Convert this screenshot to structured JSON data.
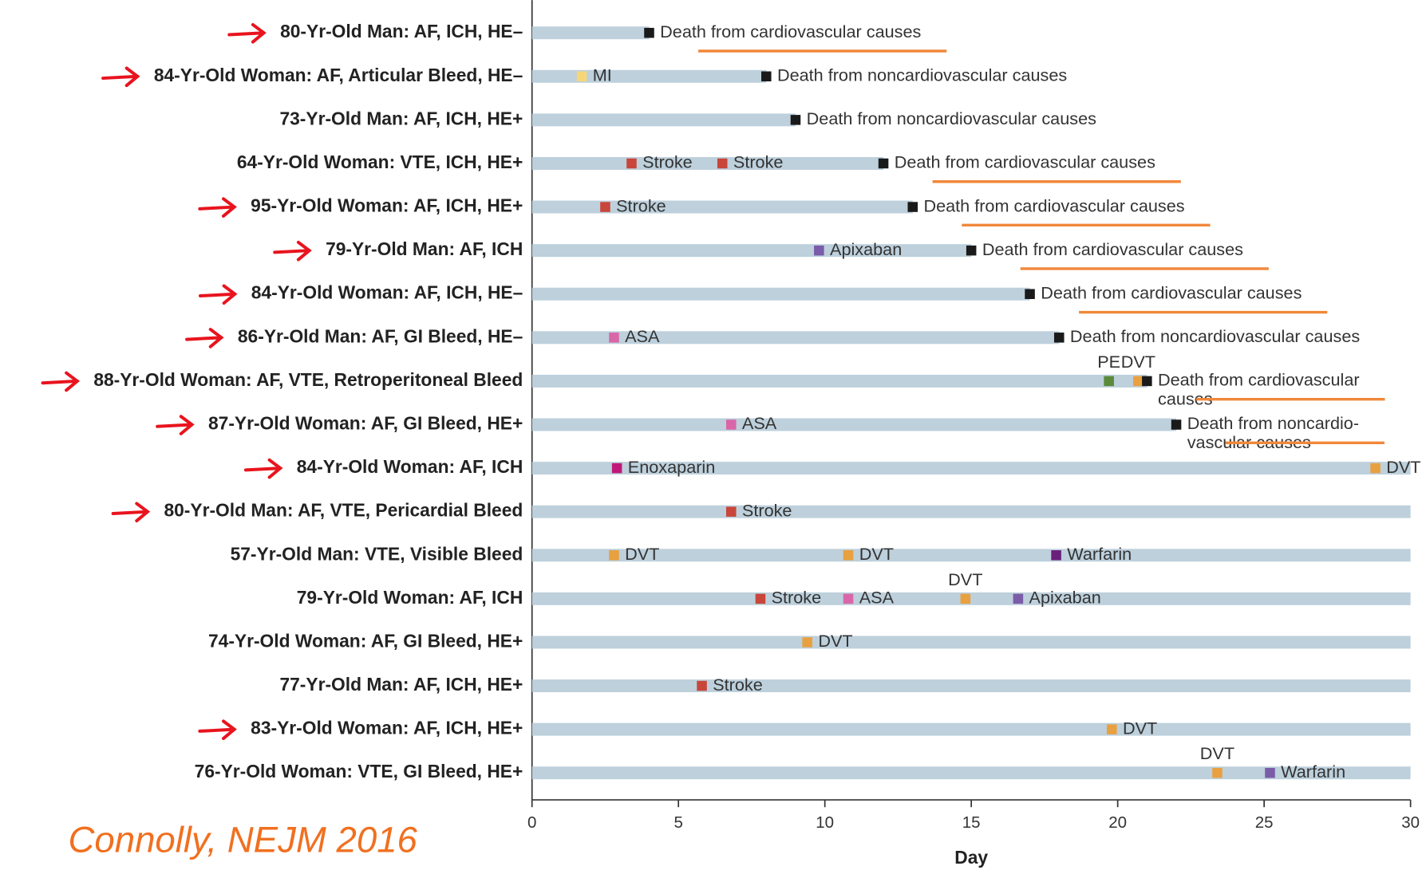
{
  "chart_data": {
    "type": "timeline",
    "x_label": "Day",
    "citation": "Connolly, NEJM 2016",
    "xlim": [
      0,
      30
    ],
    "xticks": [
      0,
      5,
      10,
      15,
      20,
      25,
      30
    ],
    "bar_color": "#bdd0dc",
    "arrow_color": "#e8141e",
    "underline_color": "#f0883a",
    "rows": [
      {
        "label": "80-Yr-Old Man: AF, ICH, HE–",
        "arrow": true,
        "end": 4,
        "events": [
          {
            "day": 4,
            "label": [
              "Death from cardiovascular causes"
            ],
            "color": "#1a1a1a",
            "underline": true
          }
        ]
      },
      {
        "label": "84-Yr-Old Woman: AF, Articular Bleed, HE–",
        "arrow": true,
        "end": 8,
        "events": [
          {
            "day": 1.7,
            "label": [
              "MI"
            ],
            "color": "#f5d77a"
          },
          {
            "day": 8,
            "label": [
              "Death from noncardiovascular causes"
            ],
            "color": "#1a1a1a"
          }
        ]
      },
      {
        "label": "73-Yr-Old Man: AF, ICH, HE+",
        "arrow": false,
        "end": 9,
        "events": [
          {
            "day": 9,
            "label": [
              "Death from noncardiovascular causes"
            ],
            "color": "#1a1a1a"
          }
        ]
      },
      {
        "label": "64-Yr-Old Woman: VTE, ICH, HE+",
        "arrow": false,
        "end": 12,
        "events": [
          {
            "day": 3.4,
            "label": [
              "Stroke"
            ],
            "color": "#c8463a"
          },
          {
            "day": 6.5,
            "label": [
              "Stroke"
            ],
            "color": "#c8463a"
          },
          {
            "day": 12,
            "label": [
              "Death from cardiovascular causes"
            ],
            "color": "#1a1a1a",
            "underline": true
          }
        ]
      },
      {
        "label": "95-Yr-Old Woman: AF, ICH, HE+",
        "arrow": true,
        "end": 13,
        "events": [
          {
            "day": 2.5,
            "label": [
              "Stroke"
            ],
            "color": "#c8463a"
          },
          {
            "day": 13,
            "label": [
              "Death from cardiovascular causes"
            ],
            "color": "#1a1a1a",
            "underline": true
          }
        ]
      },
      {
        "label": "79-Yr-Old Man: AF, ICH",
        "arrow": true,
        "end": 15,
        "events": [
          {
            "day": 9.8,
            "label": [
              "Apixaban"
            ],
            "color": "#7a5ca8"
          },
          {
            "day": 15,
            "label": [
              "Death from cardiovascular causes"
            ],
            "color": "#1a1a1a",
            "underline": true
          }
        ]
      },
      {
        "label": "84-Yr-Old Woman: AF, ICH, HE–",
        "arrow": true,
        "end": 17,
        "events": [
          {
            "day": 17,
            "label": [
              "Death from cardiovascular causes"
            ],
            "color": "#1a1a1a",
            "underline": true
          }
        ]
      },
      {
        "label": "86-Yr-Old Man: AF, GI Bleed, HE–",
        "arrow": true,
        "end": 18,
        "events": [
          {
            "day": 2.8,
            "label": [
              "ASA"
            ],
            "color": "#d966a8"
          },
          {
            "day": 18,
            "label": [
              "Death from noncardiovascular causes"
            ],
            "color": "#1a1a1a"
          }
        ]
      },
      {
        "label": "88-Yr-Old Woman: AF, VTE, Retroperitoneal Bleed",
        "arrow": true,
        "end": 21,
        "events": [
          {
            "day": 19.7,
            "label": [
              "PE"
            ],
            "color": "#5a8a3a",
            "above": true
          },
          {
            "day": 20.7,
            "label": [
              "DVT"
            ],
            "color": "#e8a040",
            "above": true
          },
          {
            "day": 21,
            "label": [
              "Death from cardiovascular",
              "causes"
            ],
            "color": "#1a1a1a",
            "underline": true
          }
        ]
      },
      {
        "label": "87-Yr-Old Woman: AF, GI Bleed, HE+",
        "arrow": true,
        "end": 22,
        "events": [
          {
            "day": 6.8,
            "label": [
              "ASA"
            ],
            "color": "#d966a8"
          },
          {
            "day": 22,
            "label": [
              "Death from noncardio-",
              "vascular causes"
            ],
            "color": "#1a1a1a",
            "underline": true
          }
        ]
      },
      {
        "label": "84-Yr-Old Woman: AF, ICH",
        "arrow": true,
        "end": 30,
        "events": [
          {
            "day": 2.9,
            "label": [
              "Enoxaparin"
            ],
            "color": "#c0187a"
          },
          {
            "day": 28.8,
            "label": [
              "DVT"
            ],
            "color": "#e8a040"
          }
        ]
      },
      {
        "label": "80-Yr-Old Man: AF, VTE, Pericardial Bleed",
        "arrow": true,
        "end": 30,
        "events": [
          {
            "day": 6.8,
            "label": [
              "Stroke"
            ],
            "color": "#c8463a"
          }
        ]
      },
      {
        "label": "57-Yr-Old Man: VTE, Visible Bleed",
        "arrow": false,
        "end": 30,
        "events": [
          {
            "day": 2.8,
            "label": [
              "DVT"
            ],
            "color": "#e8a040"
          },
          {
            "day": 10.8,
            "label": [
              "DVT"
            ],
            "color": "#e8a040"
          },
          {
            "day": 17.9,
            "label": [
              "Warfarin"
            ],
            "color": "#6a1f7a"
          }
        ]
      },
      {
        "label": "79-Yr-Old Woman: AF, ICH",
        "arrow": false,
        "end": 30,
        "events": [
          {
            "day": 7.8,
            "label": [
              "Stroke"
            ],
            "color": "#c8463a"
          },
          {
            "day": 10.8,
            "label": [
              "ASA"
            ],
            "color": "#d966a8"
          },
          {
            "day": 14.8,
            "label": [
              "DVT"
            ],
            "color": "#e8a040",
            "above": true
          },
          {
            "day": 16.6,
            "label": [
              "Apixaban"
            ],
            "color": "#7a5ca8"
          }
        ]
      },
      {
        "label": "74-Yr-Old Woman: AF, GI Bleed, HE+",
        "arrow": false,
        "end": 30,
        "events": [
          {
            "day": 9.4,
            "label": [
              "DVT"
            ],
            "color": "#e8a040"
          }
        ]
      },
      {
        "label": "77-Yr-Old Man: AF, ICH, HE+",
        "arrow": false,
        "end": 30,
        "events": [
          {
            "day": 5.8,
            "label": [
              "Stroke"
            ],
            "color": "#c8463a"
          }
        ]
      },
      {
        "label": "83-Yr-Old Woman: AF, ICH, HE+",
        "arrow": true,
        "end": 30,
        "events": [
          {
            "day": 19.8,
            "label": [
              "DVT"
            ],
            "color": "#e8a040"
          }
        ]
      },
      {
        "label": "76-Yr-Old Woman: VTE, GI Bleed, HE+",
        "arrow": false,
        "end": 30,
        "events": [
          {
            "day": 23.4,
            "label": [
              "DVT"
            ],
            "color": "#e8a040",
            "above": true
          },
          {
            "day": 25.2,
            "label": [
              "Warfarin"
            ],
            "color": "#7a5ca8"
          }
        ]
      }
    ]
  }
}
